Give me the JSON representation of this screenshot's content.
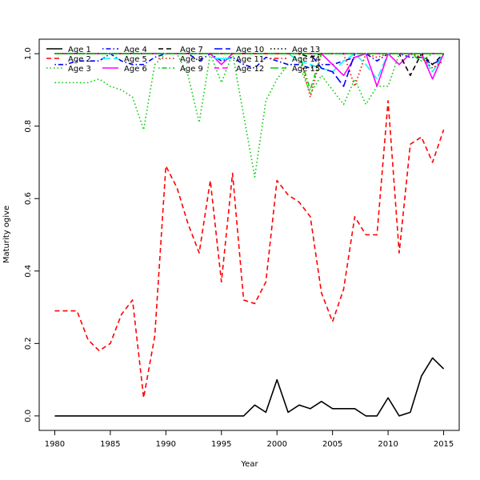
{
  "chart_data": {
    "type": "line",
    "title": "",
    "xlabel": "Year",
    "ylabel": "Maturity ogive",
    "xlim": [
      1978.6,
      2016.4
    ],
    "ylim": [
      -0.04,
      1.04
    ],
    "x_ticks": [
      1980,
      1985,
      1990,
      1995,
      2000,
      2005,
      2010,
      2015
    ],
    "y_ticks": [
      0.0,
      0.2,
      0.4,
      0.6,
      0.8,
      1.0
    ],
    "y_tick_labels": [
      "0.0",
      "0.2",
      "0.4",
      "0.6",
      "0.8",
      "1.0"
    ],
    "grid": false,
    "legend_position": "top-left, inside plot",
    "legend_columns": 5,
    "x": [
      1980,
      1981,
      1982,
      1983,
      1984,
      1985,
      1986,
      1987,
      1988,
      1989,
      1990,
      1991,
      1992,
      1993,
      1994,
      1995,
      1996,
      1997,
      1998,
      1999,
      2000,
      2001,
      2002,
      2003,
      2004,
      2005,
      2006,
      2007,
      2008,
      2009,
      2010,
      2011,
      2012,
      2013,
      2014,
      2015
    ],
    "series": [
      {
        "name": "Age 1",
        "color": "#000000",
        "dash": "solid",
        "values": [
          0,
          0,
          0,
          0,
          0,
          0,
          0,
          0,
          0,
          0,
          0,
          0,
          0,
          0,
          0,
          0,
          0,
          0,
          0.03,
          0.01,
          0.1,
          0.01,
          0.03,
          0.02,
          0.04,
          0.02,
          0.02,
          0.02,
          0.0,
          0.0,
          0.05,
          0.0,
          0.01,
          0.11,
          0.16,
          0.13
        ]
      },
      {
        "name": "Age 2",
        "color": "#ff0000",
        "dash": "dashed",
        "values": [
          0.29,
          0.29,
          0.29,
          0.21,
          0.18,
          0.2,
          0.28,
          0.32,
          0.05,
          0.22,
          0.69,
          0.63,
          0.53,
          0.45,
          0.65,
          0.37,
          0.67,
          0.32,
          0.31,
          0.37,
          0.65,
          0.61,
          0.59,
          0.55,
          0.34,
          0.26,
          0.35,
          0.55,
          0.5,
          0.5,
          0.87,
          0.45,
          0.75,
          0.77,
          0.7,
          0.79
        ]
      },
      {
        "name": "Age 3",
        "color": "#00cd00",
        "dash": "dotted",
        "values": [
          0.92,
          0.92,
          0.92,
          0.92,
          0.93,
          0.91,
          0.9,
          0.88,
          0.79,
          0.97,
          1.0,
          1.0,
          0.94,
          0.81,
          1.0,
          0.92,
          1.0,
          0.83,
          0.66,
          0.87,
          0.93,
          0.97,
          0.97,
          0.89,
          0.94,
          0.9,
          0.86,
          0.93,
          0.86,
          0.91,
          0.91,
          1.0,
          1.0,
          0.99,
          0.95,
          1.0
        ]
      },
      {
        "name": "Age 4",
        "color": "#0000ff",
        "dash": "dotdash",
        "values": [
          0.97,
          0.97,
          0.98,
          0.98,
          0.98,
          1.0,
          0.98,
          0.97,
          0.97,
          0.99,
          1.0,
          1.0,
          1.0,
          0.98,
          1.0,
          0.98,
          0.99,
          0.97,
          0.96,
          0.99,
          0.98,
          0.97,
          0.97,
          0.96,
          0.97,
          0.97,
          0.98,
          0.99,
          1.0,
          0.98,
          1.0,
          1.0,
          0.99,
          0.99,
          0.97,
          0.99
        ]
      },
      {
        "name": "Age 5",
        "color": "#00ffff",
        "dash": "longdash",
        "values": [
          1.0,
          1.0,
          1.0,
          1.0,
          1.0,
          1.0,
          1.0,
          1.0,
          1.0,
          1.0,
          1.0,
          1.0,
          1.0,
          1.0,
          1.0,
          1.0,
          1.0,
          1.0,
          1.0,
          1.0,
          1.0,
          1.0,
          0.98,
          0.97,
          0.96,
          0.95,
          0.98,
          1.0,
          0.97,
          0.93,
          1.0,
          1.0,
          1.0,
          1.0,
          0.95,
          1.0
        ]
      },
      {
        "name": "Age 6",
        "color": "#ff00ff",
        "dash": "solid",
        "values": [
          1.0,
          1.0,
          1.0,
          1.0,
          1.0,
          1.0,
          1.0,
          1.0,
          1.0,
          1.0,
          1.0,
          1.0,
          1.0,
          1.0,
          1.0,
          0.97,
          1.0,
          1.0,
          1.0,
          1.0,
          1.0,
          1.0,
          1.0,
          1.0,
          1.0,
          0.97,
          0.94,
          0.99,
          1.0,
          0.91,
          1.0,
          0.97,
          1.0,
          1.0,
          0.93,
          1.0
        ]
      },
      {
        "name": "Age 7",
        "color": "#000000",
        "dash": "dashed",
        "values": [
          1.0,
          1.0,
          1.0,
          1.0,
          1.0,
          1.0,
          1.0,
          1.0,
          1.0,
          1.0,
          1.0,
          1.0,
          1.0,
          1.0,
          1.0,
          1.0,
          1.0,
          1.0,
          1.0,
          1.0,
          1.0,
          1.0,
          1.0,
          0.99,
          1.0,
          1.0,
          1.0,
          1.0,
          1.0,
          1.0,
          1.0,
          1.0,
          0.94,
          1.0,
          0.97,
          1.0
        ]
      },
      {
        "name": "Age 8",
        "color": "#ff0000",
        "dash": "dotted",
        "values": [
          1.0,
          1.0,
          1.0,
          1.0,
          1.0,
          1.0,
          1.0,
          1.0,
          1.0,
          1.0,
          1.0,
          1.0,
          1.0,
          1.0,
          1.0,
          1.0,
          1.0,
          1.0,
          1.0,
          1.0,
          1.0,
          1.0,
          1.0,
          0.88,
          1.0,
          1.0,
          1.0,
          0.91,
          1.0,
          0.99,
          1.0,
          1.0,
          1.0,
          0.99,
          0.96,
          0.98
        ]
      },
      {
        "name": "Age 9",
        "color": "#00cd00",
        "dash": "dotdash",
        "values": [
          1.0,
          1.0,
          1.0,
          1.0,
          1.0,
          1.0,
          1.0,
          1.0,
          1.0,
          1.0,
          1.0,
          1.0,
          1.0,
          1.0,
          1.0,
          1.0,
          1.0,
          1.0,
          1.0,
          1.0,
          1.0,
          1.0,
          1.0,
          0.9,
          1.0,
          1.0,
          1.0,
          1.0,
          1.0,
          1.0,
          1.0,
          1.0,
          1.0,
          0.98,
          1.0,
          1.0
        ]
      },
      {
        "name": "Age 10",
        "color": "#0000ff",
        "dash": "longdash",
        "values": [
          1.0,
          1.0,
          1.0,
          1.0,
          1.0,
          1.0,
          1.0,
          1.0,
          1.0,
          1.0,
          1.0,
          1.0,
          1.0,
          1.0,
          1.0,
          1.0,
          1.0,
          1.0,
          1.0,
          1.0,
          1.0,
          1.0,
          1.0,
          1.0,
          0.96,
          0.95,
          0.91,
          1.0,
          1.0,
          1.0,
          1.0,
          1.0,
          1.0,
          1.0,
          1.0,
          1.0
        ]
      },
      {
        "name": "Age 11",
        "color": "#00ffff",
        "dash": "solid",
        "values": [
          1.0,
          1.0,
          1.0,
          1.0,
          1.0,
          1.0,
          1.0,
          1.0,
          1.0,
          1.0,
          1.0,
          1.0,
          1.0,
          1.0,
          1.0,
          1.0,
          1.0,
          1.0,
          1.0,
          1.0,
          1.0,
          1.0,
          1.0,
          1.0,
          1.0,
          1.0,
          1.0,
          1.0,
          1.0,
          1.0,
          1.0,
          1.0,
          1.0,
          1.0,
          1.0,
          1.0
        ]
      },
      {
        "name": "Age 12",
        "color": "#ff00ff",
        "dash": "dashed",
        "values": [
          1.0,
          1.0,
          1.0,
          1.0,
          1.0,
          1.0,
          1.0,
          1.0,
          1.0,
          1.0,
          1.0,
          1.0,
          1.0,
          1.0,
          1.0,
          1.0,
          1.0,
          1.0,
          1.0,
          1.0,
          1.0,
          1.0,
          1.0,
          1.0,
          1.0,
          1.0,
          1.0,
          1.0,
          1.0,
          1.0,
          1.0,
          1.0,
          1.0,
          1.0,
          1.0,
          1.0
        ]
      },
      {
        "name": "Age 13",
        "color": "#000000",
        "dash": "dotted",
        "values": [
          1.0,
          1.0,
          1.0,
          1.0,
          1.0,
          1.0,
          1.0,
          1.0,
          1.0,
          1.0,
          1.0,
          1.0,
          1.0,
          1.0,
          1.0,
          1.0,
          1.0,
          1.0,
          1.0,
          1.0,
          1.0,
          1.0,
          1.0,
          1.0,
          1.0,
          1.0,
          1.0,
          1.0,
          1.0,
          1.0,
          1.0,
          1.0,
          1.0,
          1.0,
          1.0,
          1.0
        ]
      },
      {
        "name": "Age 14",
        "color": "#ff0000",
        "dash": "dotdash",
        "values": [
          1.0,
          1.0,
          1.0,
          1.0,
          1.0,
          1.0,
          1.0,
          1.0,
          1.0,
          1.0,
          1.0,
          1.0,
          1.0,
          1.0,
          1.0,
          1.0,
          1.0,
          1.0,
          1.0,
          1.0,
          1.0,
          1.0,
          1.0,
          1.0,
          1.0,
          1.0,
          1.0,
          1.0,
          1.0,
          1.0,
          1.0,
          1.0,
          1.0,
          1.0,
          1.0,
          1.0
        ]
      },
      {
        "name": "Age 15",
        "color": "#00cd00",
        "dash": "longdash",
        "values": [
          1.0,
          1.0,
          1.0,
          1.0,
          1.0,
          1.0,
          1.0,
          1.0,
          1.0,
          1.0,
          1.0,
          1.0,
          1.0,
          1.0,
          1.0,
          1.0,
          1.0,
          1.0,
          1.0,
          1.0,
          1.0,
          1.0,
          1.0,
          1.0,
          1.0,
          1.0,
          1.0,
          1.0,
          1.0,
          1.0,
          1.0,
          1.0,
          1.0,
          1.0,
          1.0,
          1.0
        ]
      }
    ]
  }
}
